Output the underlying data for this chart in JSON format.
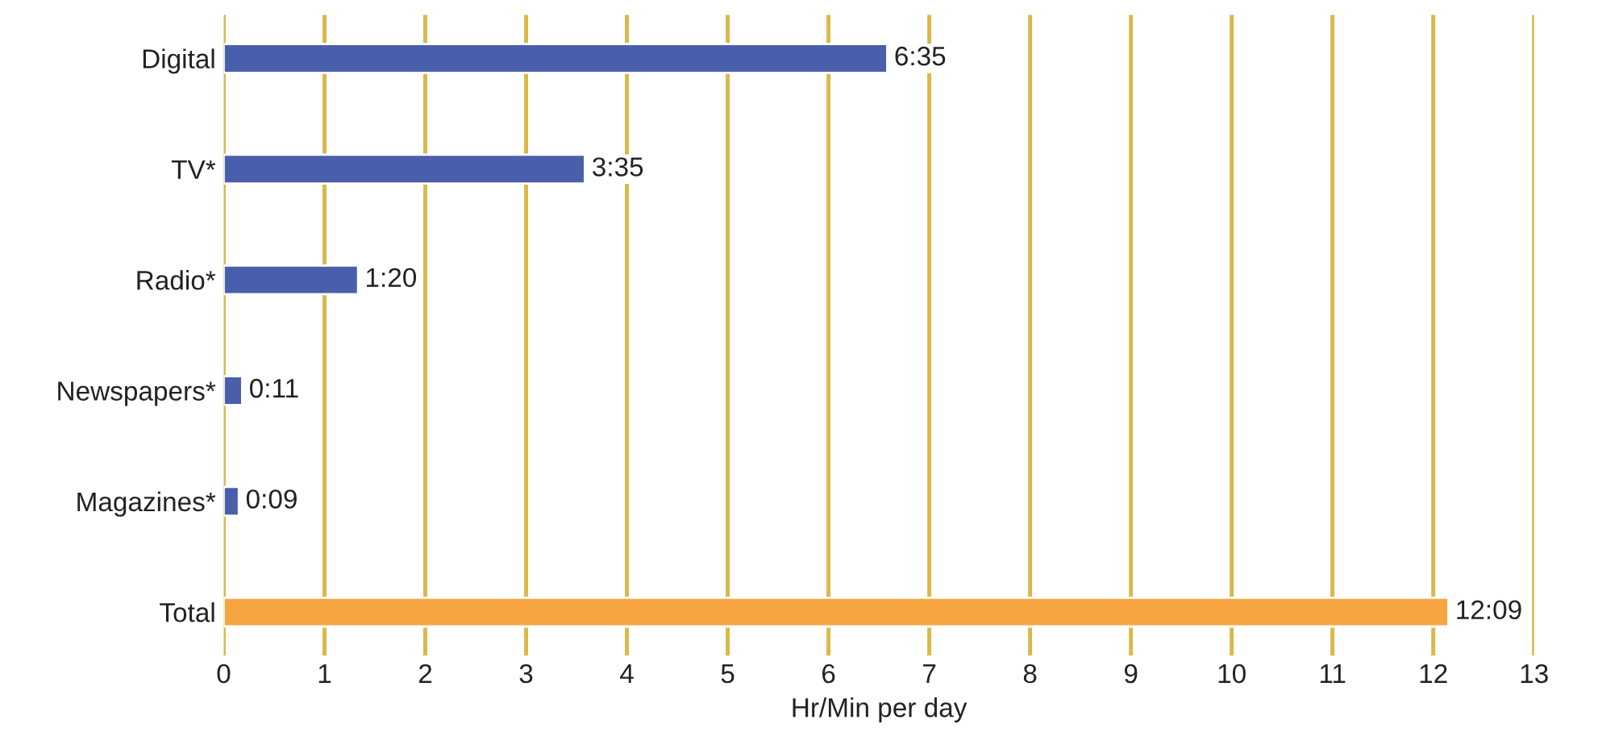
{
  "chart_data": {
    "type": "bar",
    "orientation": "horizontal",
    "categories": [
      "Digital",
      "TV*",
      "Radio*",
      "Newspapers*",
      "Magazines*",
      "Total"
    ],
    "values": [
      6.583,
      3.583,
      1.333,
      0.183,
      0.15,
      12.15
    ],
    "colors": [
      "#4a5fab",
      "#4a5fab",
      "#4a5fab",
      "#4a5fab",
      "#4a5fab",
      "#f7a541"
    ],
    "value_labels": [
      "6:35",
      "3:35",
      "1:20",
      "0:11",
      "0:09",
      "12:09"
    ],
    "xlabel": "Hr/Min per day",
    "xlim": [
      0,
      13
    ],
    "xticks": [
      0,
      1,
      2,
      3,
      4,
      5,
      6,
      7,
      8,
      9,
      10,
      11,
      12,
      13
    ],
    "grid": "x"
  }
}
